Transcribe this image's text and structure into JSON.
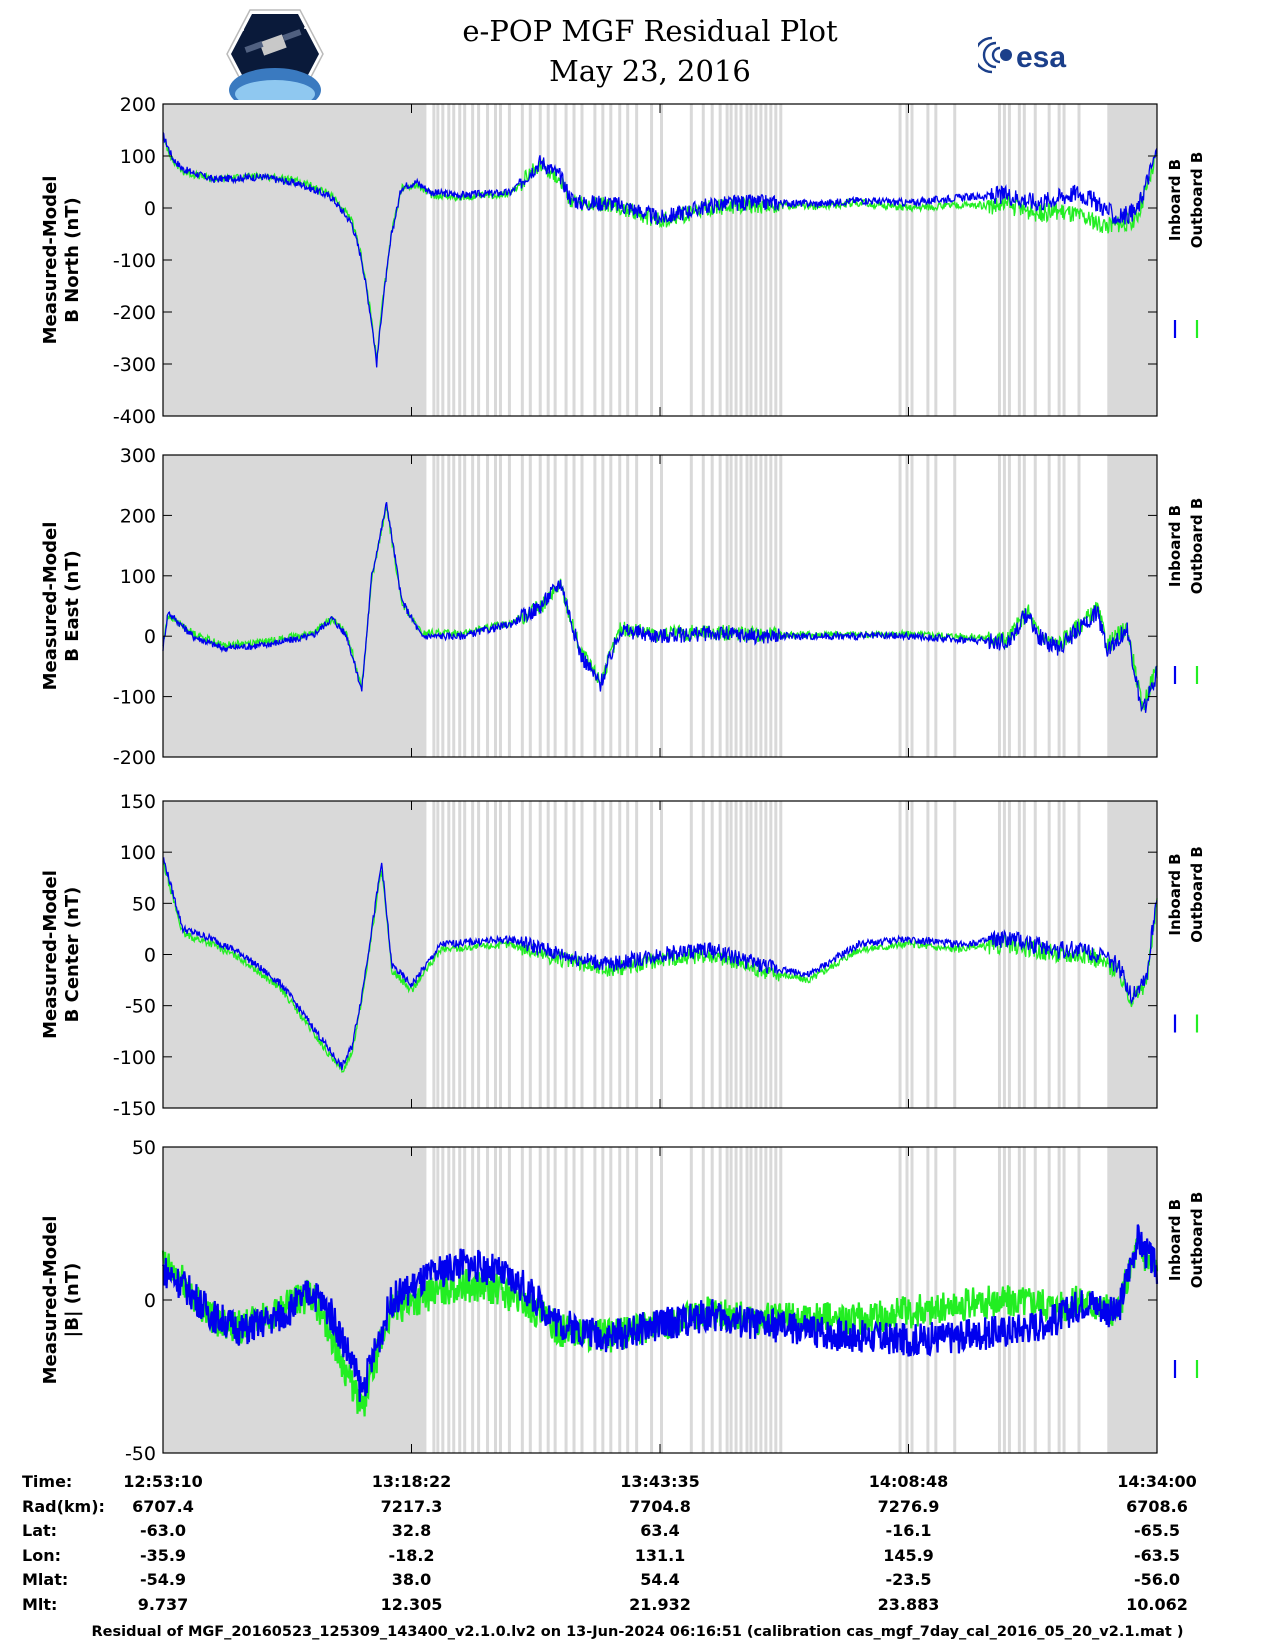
{
  "title": "e-POP MGF Residual Plot",
  "subtitle": "May 23, 2016",
  "logos": {
    "left": "cassiope-mission-logo",
    "right": "esa"
  },
  "colors": {
    "inboard": "#0000ee",
    "outboard": "#22ee22",
    "shade": "#d9d9d9",
    "axis": "#000000"
  },
  "chart_data": [
    {
      "type": "line",
      "ylabel": [
        "Measured-Model",
        "B North (nT)"
      ],
      "ylim": [
        -400,
        200
      ],
      "yticks": [
        200,
        100,
        0,
        -100,
        -200,
        -300,
        -400
      ],
      "legend": [
        "Inboard B",
        "Outboard B"
      ],
      "series": [
        {
          "name": "Inboard B",
          "x": [
            0.0,
            0.01,
            0.02,
            0.05,
            0.1,
            0.14,
            0.17,
            0.19,
            0.2,
            0.21,
            0.215,
            0.22,
            0.23,
            0.24,
            0.255,
            0.27,
            0.3,
            0.35,
            0.38,
            0.4,
            0.41,
            0.42,
            0.45,
            0.47,
            0.5,
            0.52,
            0.55,
            0.58,
            0.62,
            0.66,
            0.7,
            0.75,
            0.8,
            0.85,
            0.88,
            0.9,
            0.92,
            0.94,
            0.96,
            0.98,
            1.0
          ],
          "y": [
            140,
            95,
            75,
            55,
            60,
            45,
            20,
            -30,
            -100,
            -220,
            -300,
            -200,
            -50,
            40,
            50,
            30,
            25,
            30,
            90,
            60,
            20,
            10,
            10,
            0,
            -20,
            -10,
            5,
            10,
            10,
            8,
            15,
            10,
            20,
            25,
            10,
            20,
            30,
            10,
            -20,
            -5,
            110
          ]
        },
        {
          "name": "Outboard B",
          "x": [
            0.0,
            0.01,
            0.02,
            0.05,
            0.1,
            0.14,
            0.17,
            0.19,
            0.2,
            0.21,
            0.215,
            0.22,
            0.23,
            0.24,
            0.255,
            0.27,
            0.3,
            0.35,
            0.38,
            0.4,
            0.41,
            0.42,
            0.45,
            0.47,
            0.5,
            0.52,
            0.55,
            0.58,
            0.62,
            0.66,
            0.7,
            0.75,
            0.8,
            0.85,
            0.88,
            0.9,
            0.92,
            0.94,
            0.96,
            0.98,
            1.0
          ],
          "y": [
            135,
            90,
            70,
            55,
            62,
            50,
            25,
            -25,
            -95,
            -215,
            -295,
            -195,
            -45,
            38,
            45,
            25,
            20,
            28,
            85,
            55,
            15,
            5,
            5,
            -5,
            -25,
            -15,
            0,
            5,
            5,
            3,
            10,
            0,
            5,
            5,
            -10,
            -5,
            -15,
            -30,
            -35,
            -20,
            100
          ]
        }
      ]
    },
    {
      "type": "line",
      "ylabel": [
        "Measured-Model",
        "B East (nT)"
      ],
      "ylim": [
        -200,
        300
      ],
      "yticks": [
        300,
        200,
        100,
        0,
        -100,
        -200
      ],
      "legend": [
        "Inboard B",
        "Outboard B"
      ],
      "series": [
        {
          "name": "Inboard B",
          "x": [
            0.0,
            0.005,
            0.03,
            0.06,
            0.1,
            0.15,
            0.17,
            0.185,
            0.2,
            0.21,
            0.225,
            0.24,
            0.26,
            0.3,
            0.35,
            0.38,
            0.4,
            0.42,
            0.44,
            0.46,
            0.5,
            0.55,
            0.6,
            0.65,
            0.7,
            0.75,
            0.8,
            0.85,
            0.87,
            0.88,
            0.9,
            0.92,
            0.94,
            0.95,
            0.97,
            0.985,
            1.0
          ],
          "y": [
            -20,
            40,
            0,
            -20,
            -15,
            0,
            30,
            0,
            -90,
            100,
            220,
            60,
            0,
            0,
            20,
            50,
            90,
            -30,
            -80,
            10,
            0,
            5,
            0,
            0,
            0,
            0,
            -5,
            -10,
            40,
            0,
            -20,
            10,
            40,
            -20,
            10,
            -130,
            -60
          ]
        },
        {
          "name": "Outboard B",
          "x": [
            0.0,
            0.005,
            0.03,
            0.06,
            0.1,
            0.15,
            0.17,
            0.185,
            0.2,
            0.21,
            0.225,
            0.24,
            0.26,
            0.3,
            0.35,
            0.38,
            0.4,
            0.42,
            0.44,
            0.46,
            0.5,
            0.55,
            0.6,
            0.65,
            0.7,
            0.75,
            0.8,
            0.85,
            0.87,
            0.88,
            0.9,
            0.92,
            0.94,
            0.95,
            0.97,
            0.985,
            1.0
          ],
          "y": [
            -15,
            35,
            5,
            -15,
            -10,
            5,
            28,
            5,
            -85,
            95,
            215,
            55,
            5,
            5,
            22,
            48,
            85,
            -25,
            -75,
            12,
            3,
            7,
            3,
            3,
            3,
            3,
            0,
            -5,
            42,
            5,
            -15,
            15,
            45,
            -15,
            15,
            -120,
            -50
          ]
        }
      ]
    },
    {
      "type": "line",
      "ylabel": [
        "Measured-Model",
        "B Center (nT)"
      ],
      "ylim": [
        -150,
        150
      ],
      "yticks": [
        150,
        100,
        50,
        0,
        -50,
        -100,
        -150
      ],
      "legend": [
        "Inboard B",
        "Outboard B"
      ],
      "series": [
        {
          "name": "Inboard B",
          "x": [
            0.0,
            0.01,
            0.02,
            0.05,
            0.08,
            0.12,
            0.15,
            0.18,
            0.19,
            0.2,
            0.22,
            0.23,
            0.25,
            0.28,
            0.35,
            0.4,
            0.45,
            0.5,
            0.55,
            0.6,
            0.65,
            0.7,
            0.75,
            0.8,
            0.85,
            0.9,
            0.93,
            0.96,
            0.975,
            0.99,
            1.0
          ],
          "y": [
            95,
            60,
            25,
            15,
            0,
            -30,
            -70,
            -110,
            -90,
            -40,
            90,
            -10,
            -30,
            10,
            15,
            0,
            -10,
            0,
            5,
            -10,
            -20,
            10,
            15,
            10,
            15,
            5,
            5,
            -10,
            -40,
            -20,
            60
          ]
        },
        {
          "name": "Outboard B",
          "x": [
            0.0,
            0.01,
            0.02,
            0.05,
            0.08,
            0.12,
            0.15,
            0.18,
            0.19,
            0.2,
            0.22,
            0.23,
            0.25,
            0.28,
            0.35,
            0.4,
            0.45,
            0.5,
            0.55,
            0.6,
            0.65,
            0.7,
            0.75,
            0.8,
            0.85,
            0.9,
            0.93,
            0.96,
            0.975,
            0.99,
            1.0
          ],
          "y": [
            90,
            55,
            20,
            10,
            -5,
            -35,
            -75,
            -115,
            -95,
            -45,
            85,
            -15,
            -35,
            5,
            10,
            -5,
            -15,
            -5,
            0,
            -15,
            -25,
            5,
            10,
            5,
            10,
            0,
            0,
            -15,
            -45,
            -25,
            55
          ]
        }
      ]
    },
    {
      "type": "line",
      "ylabel": [
        "Measured-Model",
        "|B| (nT)"
      ],
      "ylim": [
        -50,
        50
      ],
      "yticks": [
        50,
        0,
        -50
      ],
      "legend": [
        "Inboard B",
        "Outboard B"
      ],
      "series": [
        {
          "name": "Inboard B",
          "x": [
            0.0,
            0.02,
            0.05,
            0.08,
            0.12,
            0.15,
            0.17,
            0.19,
            0.2,
            0.21,
            0.23,
            0.27,
            0.3,
            0.33,
            0.36,
            0.4,
            0.45,
            0.5,
            0.55,
            0.6,
            0.65,
            0.7,
            0.75,
            0.8,
            0.85,
            0.88,
            0.9,
            0.93,
            0.96,
            0.98,
            1.0
          ],
          "y": [
            10,
            5,
            -5,
            -10,
            -5,
            3,
            -5,
            -20,
            -30,
            -20,
            0,
            8,
            12,
            10,
            5,
            -8,
            -12,
            -8,
            -5,
            -8,
            -10,
            -12,
            -13,
            -12,
            -10,
            -8,
            -6,
            0,
            -5,
            20,
            10
          ]
        },
        {
          "name": "Outboard B",
          "x": [
            0.0,
            0.02,
            0.05,
            0.08,
            0.12,
            0.15,
            0.17,
            0.19,
            0.2,
            0.21,
            0.23,
            0.27,
            0.3,
            0.33,
            0.36,
            0.4,
            0.45,
            0.5,
            0.55,
            0.6,
            0.65,
            0.7,
            0.75,
            0.8,
            0.85,
            0.88,
            0.9,
            0.93,
            0.96,
            0.98,
            1.0
          ],
          "y": [
            12,
            6,
            -6,
            -9,
            -3,
            2,
            -12,
            -28,
            -36,
            -24,
            -3,
            2,
            5,
            4,
            0,
            -10,
            -12,
            -8,
            -4,
            -6,
            -6,
            -6,
            -4,
            -2,
            0,
            0,
            -2,
            0,
            -5,
            18,
            10
          ]
        }
      ]
    }
  ],
  "table": {
    "rows": [
      {
        "label": "Time:",
        "values": [
          "12:53:10",
          "13:18:22",
          "13:43:35",
          "14:08:48",
          "14:34:00"
        ]
      },
      {
        "label": "Rad(km):",
        "values": [
          "6707.4",
          "7217.3",
          "7704.8",
          "7276.9",
          "6708.6"
        ]
      },
      {
        "label": "Lat:",
        "values": [
          "-63.0",
          "32.8",
          "63.4",
          "-16.1",
          "-65.5"
        ]
      },
      {
        "label": "Lon:",
        "values": [
          "-35.9",
          "-18.2",
          "131.1",
          "145.9",
          "-63.5"
        ]
      },
      {
        "label": "Mlat:",
        "values": [
          "-54.9",
          "38.0",
          "54.4",
          "-23.5",
          "-56.0"
        ]
      },
      {
        "label": "Mlt:",
        "values": [
          "9.737",
          "12.305",
          "21.932",
          "23.883",
          "10.062"
        ]
      }
    ]
  },
  "footer": "Residual of MGF_20160523_125309_143400_v2.1.0.lv2 on 13-Jun-2024 06:16:51 (calibration cas_mgf_7day_cal_2016_05_20_v2.1.mat )"
}
